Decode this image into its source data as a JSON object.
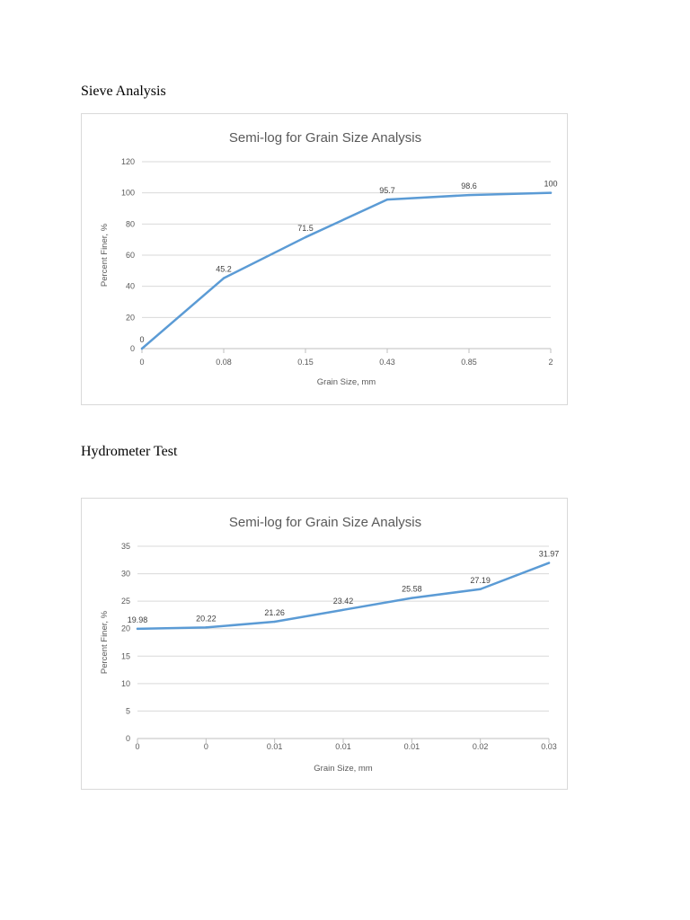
{
  "headings": {
    "sieve": "Sieve Analysis",
    "hydrometer": "Hydrometer Test"
  },
  "chart_data": [
    {
      "type": "line",
      "title": "Semi-log for Grain Size Analysis",
      "xlabel": "Grain Size, mm",
      "ylabel": "Percent Finer, %",
      "categories": [
        "0",
        "0.08",
        "0.15",
        "0.43",
        "0.85",
        "2"
      ],
      "series": [
        {
          "values": [
            0,
            45.2,
            71.5,
            95.7,
            98.6,
            100
          ],
          "color": "#5b9bd5"
        }
      ],
      "data_labels": [
        "0",
        "45.2",
        "71.5",
        "95.7",
        "98.6",
        "100"
      ],
      "ylim": [
        0,
        120
      ],
      "yticks": [
        "0",
        "20",
        "40",
        "60",
        "80",
        "100",
        "120"
      ],
      "grid": true,
      "legend": "none"
    },
    {
      "type": "line",
      "title": "Semi-log for Grain Size Analysis",
      "xlabel": "Grain Size, mm",
      "ylabel": "Percent Finer, %",
      "categories": [
        "0",
        "0",
        "0.01",
        "0.01",
        "0.01",
        "0.02",
        "0.03"
      ],
      "series": [
        {
          "values": [
            19.98,
            20.22,
            21.26,
            23.42,
            25.58,
            27.19,
            31.97
          ],
          "color": "#5b9bd5"
        }
      ],
      "data_labels": [
        "19.98",
        "20.22",
        "21.26",
        "23.42",
        "25.58",
        "27.19",
        "31.97"
      ],
      "ylim": [
        0,
        35
      ],
      "yticks": [
        "0",
        "5",
        "10",
        "15",
        "20",
        "25",
        "30",
        "35"
      ],
      "grid": true,
      "legend": "none"
    }
  ]
}
